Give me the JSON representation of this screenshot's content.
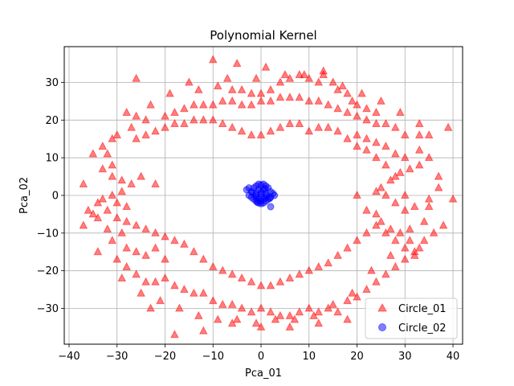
{
  "chart_data": {
    "type": "scatter",
    "title": "Polynomial Kernel",
    "xlabel": "Pca_01",
    "ylabel": "Pca_02",
    "xlim": [
      -41,
      42
    ],
    "ylim": [
      -39.5,
      39.5
    ],
    "xticks": [
      -40,
      -30,
      -20,
      -10,
      0,
      10,
      20,
      30,
      40
    ],
    "yticks": [
      -30,
      -20,
      -10,
      0,
      10,
      20,
      30
    ],
    "grid": true,
    "legend": {
      "placement": "bottom-right"
    },
    "series": [
      {
        "name": "Circle_01",
        "marker": "triangle",
        "color": "#ff0000",
        "alpha": 0.5,
        "points": [
          [
            -10,
            36
          ],
          [
            -5,
            35
          ],
          [
            1,
            34
          ],
          [
            -26,
            31
          ],
          [
            -15,
            30
          ],
          [
            -9,
            29
          ],
          [
            -6,
            28
          ],
          [
            -4,
            28
          ],
          [
            -2,
            27
          ],
          [
            0,
            27
          ],
          [
            2,
            28
          ],
          [
            4,
            30
          ],
          [
            6,
            31
          ],
          [
            8,
            32
          ],
          [
            10,
            31
          ],
          [
            12,
            30
          ],
          [
            13,
            32
          ],
          [
            15,
            30
          ],
          [
            16,
            28
          ],
          [
            18,
            27
          ],
          [
            19,
            25
          ],
          [
            20,
            24
          ],
          [
            22,
            23
          ],
          [
            24,
            22
          ],
          [
            -28,
            22
          ],
          [
            -26,
            21
          ],
          [
            -24,
            20
          ],
          [
            -20,
            21
          ],
          [
            -18,
            22
          ],
          [
            -16,
            23
          ],
          [
            -14,
            24
          ],
          [
            -12,
            24
          ],
          [
            -10,
            24
          ],
          [
            -8,
            25
          ],
          [
            -6,
            25
          ],
          [
            -4,
            24
          ],
          [
            -2,
            24
          ],
          [
            0,
            25
          ],
          [
            2,
            25
          ],
          [
            4,
            26
          ],
          [
            6,
            26
          ],
          [
            8,
            26
          ],
          [
            10,
            25
          ],
          [
            12,
            25
          ],
          [
            14,
            24
          ],
          [
            16,
            23
          ],
          [
            18,
            22
          ],
          [
            20,
            21
          ],
          [
            22,
            20
          ],
          [
            24,
            19
          ],
          [
            26,
            19
          ],
          [
            28,
            18
          ],
          [
            30,
            16
          ],
          [
            33,
            16
          ],
          [
            35,
            16
          ],
          [
            39,
            18
          ],
          [
            -30,
            16
          ],
          [
            -31,
            15
          ],
          [
            -33,
            13
          ],
          [
            -32,
            11
          ],
          [
            -31,
            8
          ],
          [
            -33,
            7
          ],
          [
            -31,
            5
          ],
          [
            -29,
            4
          ],
          [
            -27,
            3
          ],
          [
            -25,
            5
          ],
          [
            -22,
            3
          ],
          [
            -29,
            1
          ],
          [
            -31,
            0
          ],
          [
            -33,
            -1
          ],
          [
            -30,
            -2
          ],
          [
            -28,
            -3
          ],
          [
            -35,
            -5
          ],
          [
            -34,
            -6
          ],
          [
            -37,
            3
          ],
          [
            -37,
            -8
          ],
          [
            -32,
            -9
          ],
          [
            -29,
            -10
          ],
          [
            -31,
            -12
          ],
          [
            -28,
            -14
          ],
          [
            -26,
            -15
          ],
          [
            -24,
            -16
          ],
          [
            -22,
            -14
          ],
          [
            -20,
            -17
          ],
          [
            -30,
            -17
          ],
          [
            -28,
            -19
          ],
          [
            -26,
            -21
          ],
          [
            -24,
            -23
          ],
          [
            -22,
            -23
          ],
          [
            -20,
            -22
          ],
          [
            -18,
            -24
          ],
          [
            -16,
            -25
          ],
          [
            -14,
            -26
          ],
          [
            -12,
            -26
          ],
          [
            -10,
            -28
          ],
          [
            -8,
            -29
          ],
          [
            -6,
            -29
          ],
          [
            -4,
            -30
          ],
          [
            -2,
            -31
          ],
          [
            0,
            -30
          ],
          [
            2,
            -31
          ],
          [
            4,
            -32
          ],
          [
            6,
            -32
          ],
          [
            8,
            -31
          ],
          [
            10,
            -30
          ],
          [
            12,
            -31
          ],
          [
            14,
            -30
          ],
          [
            16,
            -31
          ],
          [
            18,
            -28
          ],
          [
            -18,
            -37
          ],
          [
            -12,
            -36
          ],
          [
            -6,
            -34
          ],
          [
            0,
            -35
          ],
          [
            6,
            -35
          ],
          [
            12,
            -34
          ],
          [
            18,
            -33
          ],
          [
            20,
            -27
          ],
          [
            22,
            -25
          ],
          [
            24,
            -23
          ],
          [
            26,
            -21
          ],
          [
            28,
            -19
          ],
          [
            30,
            -17
          ],
          [
            32,
            -15
          ],
          [
            34,
            -12
          ],
          [
            36,
            -10
          ],
          [
            38,
            -8
          ],
          [
            33,
            -14
          ],
          [
            31,
            -12
          ],
          [
            29,
            -10
          ],
          [
            27,
            -9
          ],
          [
            25,
            -7
          ],
          [
            24,
            -5
          ],
          [
            22,
            -4
          ],
          [
            25,
            2
          ],
          [
            27,
            4
          ],
          [
            29,
            6
          ],
          [
            31,
            7
          ],
          [
            33,
            8
          ],
          [
            35,
            10
          ],
          [
            33,
            12
          ],
          [
            30,
            10
          ],
          [
            28,
            11
          ],
          [
            26,
            13
          ],
          [
            24,
            14
          ],
          [
            22,
            15
          ],
          [
            20,
            16
          ],
          [
            37,
            2
          ],
          [
            40,
            -1
          ],
          [
            35,
            -3
          ],
          [
            30,
            -4
          ],
          [
            28,
            -2
          ],
          [
            26,
            0
          ],
          [
            24,
            1
          ],
          [
            20,
            0
          ],
          [
            34,
            -7
          ],
          [
            32,
            -3
          ],
          [
            30,
            0
          ],
          [
            28,
            5
          ],
          [
            26,
            8
          ],
          [
            24,
            10
          ],
          [
            22,
            12
          ],
          [
            20,
            13
          ],
          [
            18,
            15
          ],
          [
            16,
            17
          ],
          [
            14,
            18
          ],
          [
            12,
            18
          ],
          [
            10,
            17
          ],
          [
            8,
            19
          ],
          [
            6,
            19
          ],
          [
            4,
            18
          ],
          [
            2,
            17
          ],
          [
            0,
            16
          ],
          [
            -2,
            16
          ],
          [
            -4,
            17
          ],
          [
            -6,
            18
          ],
          [
            -8,
            19
          ],
          [
            -10,
            20
          ],
          [
            -12,
            20
          ],
          [
            -14,
            20
          ],
          [
            -16,
            19
          ],
          [
            -18,
            19
          ],
          [
            -20,
            18
          ],
          [
            -22,
            17
          ],
          [
            -24,
            16
          ],
          [
            -26,
            15
          ],
          [
            -34,
            -2
          ],
          [
            -32,
            -4
          ],
          [
            -30,
            -6
          ],
          [
            -28,
            -7
          ],
          [
            -26,
            -8
          ],
          [
            -24,
            -9
          ],
          [
            -22,
            -10
          ],
          [
            -20,
            -11
          ],
          [
            -18,
            -12
          ],
          [
            -16,
            -13
          ],
          [
            -14,
            -15
          ],
          [
            -12,
            -17
          ],
          [
            -10,
            -19
          ],
          [
            -8,
            -20
          ],
          [
            -6,
            -21
          ],
          [
            -4,
            -22
          ],
          [
            -2,
            -23
          ],
          [
            0,
            -24
          ],
          [
            2,
            -24
          ],
          [
            4,
            -23
          ],
          [
            6,
            -22
          ],
          [
            8,
            -21
          ],
          [
            10,
            -20
          ],
          [
            12,
            -19
          ],
          [
            14,
            -18
          ],
          [
            16,
            -16
          ],
          [
            18,
            -14
          ],
          [
            20,
            -12
          ],
          [
            22,
            -10
          ],
          [
            24,
            -8
          ],
          [
            26,
            -10
          ],
          [
            28,
            -12
          ],
          [
            30,
            -14
          ],
          [
            32,
            -16
          ],
          [
            -25,
            -26
          ],
          [
            -21,
            -28
          ],
          [
            -17,
            -30
          ],
          [
            -13,
            -32
          ],
          [
            -9,
            -33
          ],
          [
            -5,
            -33
          ],
          [
            -1,
            -34
          ],
          [
            3,
            -33
          ],
          [
            7,
            -33
          ],
          [
            11,
            -32
          ],
          [
            15,
            -29
          ],
          [
            19,
            -26
          ],
          [
            23,
            -20
          ],
          [
            27,
            -16
          ],
          [
            31,
            -9
          ],
          [
            35,
            -1
          ],
          [
            37,
            5
          ],
          [
            33,
            19
          ],
          [
            29,
            22
          ],
          [
            25,
            25
          ],
          [
            21,
            27
          ],
          [
            17,
            29
          ],
          [
            13,
            33
          ],
          [
            9,
            32
          ],
          [
            5,
            32
          ],
          [
            -1,
            31
          ],
          [
            -7,
            31
          ],
          [
            -13,
            28
          ],
          [
            -19,
            27
          ],
          [
            -23,
            24
          ],
          [
            -27,
            18
          ],
          [
            -35,
            11
          ],
          [
            -36,
            -4
          ],
          [
            -34,
            -15
          ],
          [
            -29,
            -22
          ],
          [
            -23,
            -30
          ]
        ]
      },
      {
        "name": "Circle_02",
        "marker": "circle",
        "color": "#0000ff",
        "alpha": 0.5,
        "points": [
          [
            -3,
            1.5
          ],
          [
            -2,
            1
          ],
          [
            -1.5,
            2
          ],
          [
            -1,
            2.5
          ],
          [
            -0.5,
            3
          ],
          [
            0,
            2.8
          ],
          [
            0.5,
            3
          ],
          [
            1,
            2.5
          ],
          [
            1.5,
            2
          ],
          [
            2,
            1
          ],
          [
            2.5,
            0.5
          ],
          [
            2,
            -0.5
          ],
          [
            1.5,
            -1
          ],
          [
            1,
            -1.5
          ],
          [
            0.5,
            -2
          ],
          [
            0,
            -2.2
          ],
          [
            -0.5,
            -2
          ],
          [
            -1,
            -1.5
          ],
          [
            -1.5,
            -1
          ],
          [
            -2,
            -0.5
          ],
          [
            -2.5,
            0
          ],
          [
            -1,
            0.5
          ],
          [
            0,
            0.5
          ],
          [
            1,
            0.5
          ],
          [
            0,
            -0.5
          ],
          [
            -1,
            -0.5
          ],
          [
            1,
            -0.5
          ],
          [
            0.5,
            1.5
          ],
          [
            -0.5,
            1.5
          ],
          [
            0.5,
            -1
          ],
          [
            -0.5,
            -1
          ],
          [
            2,
            -3
          ],
          [
            -2.5,
            2
          ],
          [
            -0.8,
            -1.8
          ],
          [
            0.8,
            1.8
          ],
          [
            -1.8,
            0.8
          ],
          [
            1.8,
            -0.8
          ],
          [
            0,
            1
          ],
          [
            0,
            -1.5
          ],
          [
            1.2,
            0
          ],
          [
            -1.2,
            0
          ],
          [
            2.8,
            0
          ]
        ]
      }
    ]
  }
}
